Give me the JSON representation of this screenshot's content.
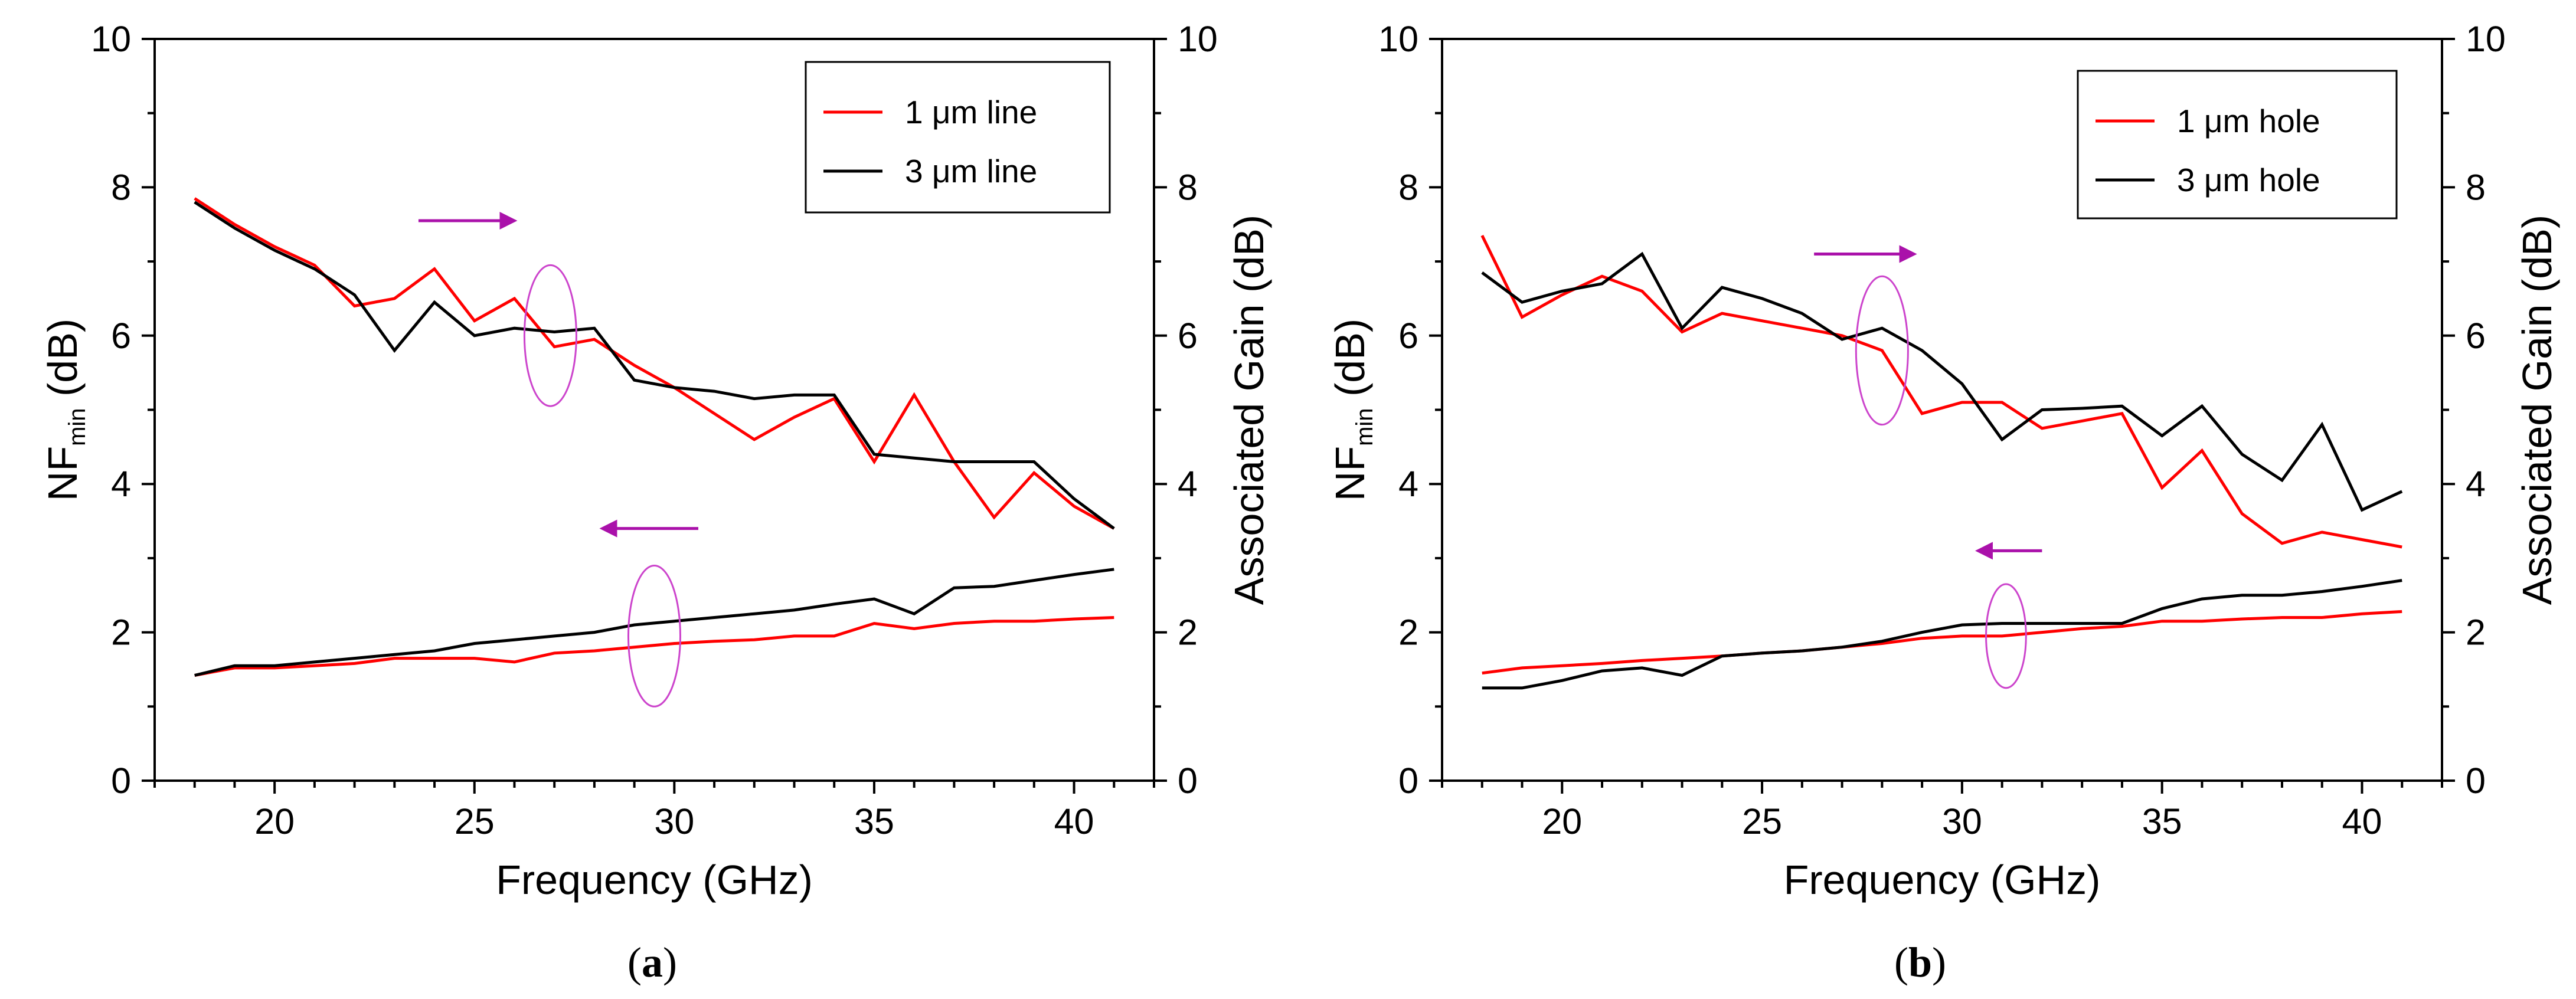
{
  "chart_data": [
    {
      "type": "line",
      "caption": {
        "open": "(",
        "letter": "a",
        "close": ")"
      },
      "xlabel": "Frequency (GHz)",
      "ylabel_left": {
        "base": "NF",
        "sub": "min",
        "unit": " (dB)"
      },
      "ylabel_right": "Associated Gain (dB)",
      "xlim": [
        17,
        42
      ],
      "ylim_left": [
        0,
        10
      ],
      "ylim_right": [
        0,
        10
      ],
      "xticks": [
        20,
        25,
        30,
        35,
        40
      ],
      "yticks": [
        0,
        2,
        4,
        6,
        8,
        10
      ],
      "x": [
        18,
        19,
        20,
        21,
        22,
        23,
        24,
        25,
        26,
        27,
        28,
        29,
        30,
        31,
        32,
        33,
        34,
        35,
        36,
        37,
        38,
        39,
        40,
        41
      ],
      "series": [
        {
          "name": "1 μm line",
          "color": "#ff0000",
          "axis": "right",
          "kind": "gain",
          "values": [
            7.85,
            7.5,
            7.2,
            6.95,
            6.4,
            6.5,
            6.9,
            6.2,
            6.5,
            5.85,
            5.95,
            5.6,
            5.3,
            4.95,
            4.6,
            4.9,
            5.15,
            4.3,
            5.2,
            4.3,
            3.55,
            4.15,
            3.7,
            3.4
          ]
        },
        {
          "name": "3 μm line",
          "color": "#000000",
          "axis": "right",
          "kind": "gain",
          "values": [
            7.8,
            7.45,
            7.15,
            6.9,
            6.55,
            5.8,
            6.45,
            6.0,
            6.1,
            6.05,
            6.1,
            5.4,
            5.3,
            5.25,
            5.15,
            5.2,
            5.2,
            4.4,
            4.35,
            4.3,
            4.3,
            4.3,
            3.8,
            3.4
          ]
        },
        {
          "name": "1 μm line",
          "color": "#ff0000",
          "axis": "left",
          "kind": "nf",
          "values": [
            1.42,
            1.52,
            1.52,
            1.55,
            1.58,
            1.65,
            1.65,
            1.65,
            1.6,
            1.72,
            1.75,
            1.8,
            1.85,
            1.88,
            1.9,
            1.95,
            1.95,
            2.12,
            2.05,
            2.12,
            2.15,
            2.15,
            2.18,
            2.2
          ]
        },
        {
          "name": "3 μm line",
          "color": "#000000",
          "axis": "left",
          "kind": "nf",
          "values": [
            1.42,
            1.55,
            1.55,
            1.6,
            1.65,
            1.7,
            1.75,
            1.85,
            1.9,
            1.95,
            2.0,
            2.1,
            2.15,
            2.2,
            2.25,
            2.3,
            2.38,
            2.45,
            2.25,
            2.6,
            2.62,
            2.7,
            2.78,
            2.85
          ]
        }
      ],
      "legend": [
        {
          "label": "1 μm line",
          "color": "#ff0000"
        },
        {
          "label": "3 μm line",
          "color": "#000000"
        }
      ],
      "legend_position": "top-right",
      "annotations": [
        {
          "shape": "ellipse",
          "cx": 26.9,
          "cy": 6.0,
          "rx": 0.65,
          "ry": 0.95,
          "color": "#cc44cc"
        },
        {
          "shape": "arrow",
          "direction": "right",
          "x1": 23.6,
          "x2": 26.0,
          "y": 7.55,
          "color": "#aa11aa"
        },
        {
          "shape": "ellipse",
          "cx": 29.5,
          "cy": 1.95,
          "rx": 0.65,
          "ry": 0.95,
          "color": "#cc44cc"
        },
        {
          "shape": "arrow",
          "direction": "left",
          "x1": 30.6,
          "x2": 28.2,
          "y": 3.4,
          "color": "#aa11aa"
        }
      ],
      "grid": false
    },
    {
      "type": "line",
      "caption": {
        "open": "(",
        "letter": "b",
        "close": ")"
      },
      "xlabel": "Frequency (GHz)",
      "ylabel_left": {
        "base": "NF",
        "sub": "min",
        "unit": " (dB)"
      },
      "ylabel_right": "Associated Gain (dB)",
      "xlim": [
        17,
        42
      ],
      "ylim_left": [
        0,
        10
      ],
      "ylim_right": [
        0,
        10
      ],
      "xticks": [
        20,
        25,
        30,
        35,
        40
      ],
      "yticks": [
        0,
        2,
        4,
        6,
        8,
        10
      ],
      "x": [
        18,
        19,
        20,
        21,
        22,
        23,
        24,
        25,
        26,
        27,
        28,
        29,
        30,
        31,
        32,
        33,
        34,
        35,
        36,
        37,
        38,
        39,
        40,
        41
      ],
      "series": [
        {
          "name": "1 μm hole",
          "color": "#ff0000",
          "axis": "right",
          "kind": "gain",
          "values": [
            7.35,
            6.25,
            6.55,
            6.8,
            6.6,
            6.05,
            6.3,
            6.2,
            6.1,
            6.0,
            5.8,
            4.95,
            5.1,
            5.1,
            4.75,
            4.85,
            4.95,
            3.95,
            4.45,
            3.6,
            3.2,
            3.35,
            3.25,
            3.15
          ]
        },
        {
          "name": "3 μm hole",
          "color": "#000000",
          "axis": "right",
          "kind": "gain",
          "values": [
            6.85,
            6.45,
            6.6,
            6.7,
            7.1,
            6.1,
            6.65,
            6.5,
            6.3,
            5.95,
            6.1,
            5.8,
            5.35,
            4.6,
            5.0,
            5.02,
            5.05,
            4.65,
            5.05,
            4.4,
            4.05,
            4.8,
            3.65,
            3.9
          ]
        },
        {
          "name": "1 μm hole",
          "color": "#ff0000",
          "axis": "left",
          "kind": "nf",
          "values": [
            1.45,
            1.52,
            1.55,
            1.58,
            1.62,
            1.65,
            1.68,
            1.72,
            1.75,
            1.8,
            1.85,
            1.92,
            1.95,
            1.95,
            2.0,
            2.05,
            2.08,
            2.15,
            2.15,
            2.18,
            2.2,
            2.2,
            2.25,
            2.28
          ]
        },
        {
          "name": "3 μm hole",
          "color": "#000000",
          "axis": "left",
          "kind": "nf",
          "values": [
            1.25,
            1.25,
            1.35,
            1.48,
            1.52,
            1.42,
            1.68,
            1.72,
            1.75,
            1.8,
            1.88,
            2.0,
            2.1,
            2.12,
            2.12,
            2.12,
            2.12,
            2.32,
            2.45,
            2.5,
            2.5,
            2.55,
            2.62,
            2.7
          ]
        }
      ],
      "legend": [
        {
          "label": "1 μm hole",
          "color": "#ff0000"
        },
        {
          "label": "3 μm hole",
          "color": "#000000"
        }
      ],
      "legend_position": "top-right",
      "annotations": [
        {
          "shape": "ellipse",
          "cx": 28.0,
          "cy": 5.8,
          "rx": 0.65,
          "ry": 1.0,
          "color": "#cc44cc"
        },
        {
          "shape": "arrow",
          "direction": "right",
          "x1": 26.3,
          "x2": 28.8,
          "y": 7.1,
          "color": "#aa11aa"
        },
        {
          "shape": "ellipse",
          "cx": 31.1,
          "cy": 1.95,
          "rx": 0.5,
          "ry": 0.7,
          "color": "#cc44cc"
        },
        {
          "shape": "arrow",
          "direction": "left",
          "x1": 32.0,
          "x2": 30.4,
          "y": 3.1,
          "color": "#aa11aa"
        }
      ],
      "grid": false
    }
  ]
}
